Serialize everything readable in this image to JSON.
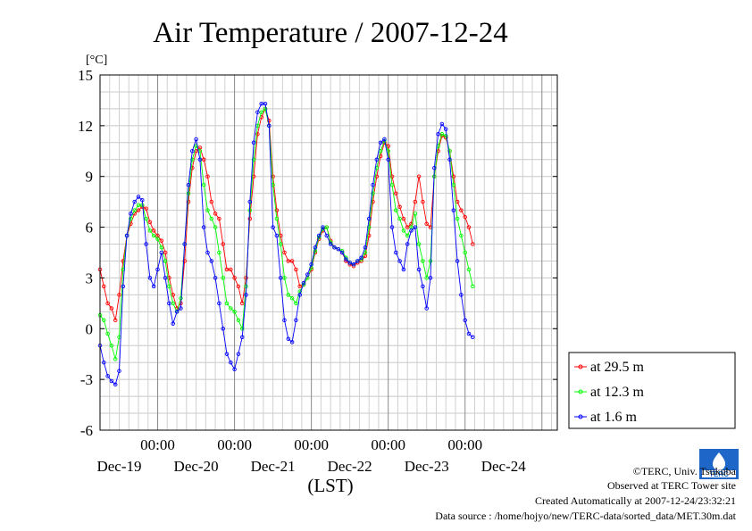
{
  "chart_data": {
    "type": "line",
    "title": "Air Temperature / 2007-12-24",
    "unit": "[°C]",
    "xlabel": "(LST)",
    "ylim": [
      -6,
      15
    ],
    "yticks": [
      15,
      12,
      9,
      6,
      3,
      0,
      -3,
      -6
    ],
    "xlim": [
      -0.75,
      5.2
    ],
    "grid": true,
    "legend_position": "right",
    "x_time_ticks": [
      "00:00",
      "00:00",
      "00:00",
      "00:00",
      "00:00"
    ],
    "x_date_ticks": [
      "Dec-19",
      "Dec-20",
      "Dec-21",
      "Dec-22",
      "Dec-23",
      "Dec-24"
    ],
    "x_date_positions": [
      -0.5,
      0.5,
      1.5,
      2.5,
      3.5,
      4.5
    ],
    "series": [
      {
        "name": "at 29.5 m",
        "color": "#ff0000",
        "points": [
          [
            -0.75,
            3.5
          ],
          [
            -0.7,
            2.5
          ],
          [
            -0.65,
            1.5
          ],
          [
            -0.6,
            1.2
          ],
          [
            -0.55,
            0.5
          ],
          [
            -0.5,
            2.0
          ],
          [
            -0.45,
            4.0
          ],
          [
            -0.4,
            5.5
          ],
          [
            -0.35,
            6.2
          ],
          [
            -0.3,
            6.8
          ],
          [
            -0.25,
            7.0
          ],
          [
            -0.2,
            7.2
          ],
          [
            -0.15,
            7.1
          ],
          [
            -0.1,
            6.3
          ],
          [
            -0.05,
            5.8
          ],
          [
            0.0,
            5.5
          ],
          [
            0.05,
            5.2
          ],
          [
            0.1,
            4.5
          ],
          [
            0.15,
            3.0
          ],
          [
            0.2,
            2.0
          ],
          [
            0.25,
            1.2
          ],
          [
            0.3,
            1.5
          ],
          [
            0.35,
            4.0
          ],
          [
            0.4,
            7.5
          ],
          [
            0.45,
            9.5
          ],
          [
            0.5,
            10.5
          ],
          [
            0.55,
            10.7
          ],
          [
            0.6,
            10.0
          ],
          [
            0.65,
            9.0
          ],
          [
            0.7,
            7.5
          ],
          [
            0.75,
            6.8
          ],
          [
            0.8,
            6.5
          ],
          [
            0.85,
            5.0
          ],
          [
            0.9,
            3.5
          ],
          [
            0.95,
            3.5
          ],
          [
            1.0,
            3.0
          ],
          [
            1.05,
            2.5
          ],
          [
            1.1,
            1.5
          ],
          [
            1.15,
            3.0
          ],
          [
            1.2,
            6.5
          ],
          [
            1.25,
            9.0
          ],
          [
            1.3,
            11.5
          ],
          [
            1.35,
            12.5
          ],
          [
            1.4,
            13.0
          ],
          [
            1.45,
            12.3
          ],
          [
            1.5,
            9.0
          ],
          [
            1.55,
            7.0
          ],
          [
            1.6,
            5.5
          ],
          [
            1.65,
            4.5
          ],
          [
            1.7,
            4.0
          ],
          [
            1.75,
            4.0
          ],
          [
            1.8,
            3.5
          ],
          [
            1.85,
            2.5
          ],
          [
            1.9,
            2.6
          ],
          [
            1.95,
            3.0
          ],
          [
            2.0,
            3.5
          ],
          [
            2.05,
            4.5
          ],
          [
            2.1,
            5.3
          ],
          [
            2.15,
            5.8
          ],
          [
            2.2,
            6.0
          ],
          [
            2.25,
            5.2
          ],
          [
            2.3,
            4.8
          ],
          [
            2.35,
            4.7
          ],
          [
            2.4,
            4.5
          ],
          [
            2.45,
            4.0
          ],
          [
            2.5,
            3.8
          ],
          [
            2.55,
            3.7
          ],
          [
            2.6,
            3.9
          ],
          [
            2.65,
            4.0
          ],
          [
            2.7,
            4.3
          ],
          [
            2.75,
            5.5
          ],
          [
            2.8,
            7.5
          ],
          [
            2.85,
            9.0
          ],
          [
            2.9,
            10.2
          ],
          [
            2.95,
            11.0
          ],
          [
            3.0,
            10.8
          ],
          [
            3.05,
            9.0
          ],
          [
            3.1,
            8.0
          ],
          [
            3.15,
            7.2
          ],
          [
            3.2,
            6.5
          ],
          [
            3.25,
            6.0
          ],
          [
            3.3,
            6.2
          ],
          [
            3.35,
            7.5
          ],
          [
            3.4,
            9.0
          ],
          [
            3.45,
            7.5
          ],
          [
            3.5,
            6.2
          ],
          [
            3.55,
            6.0
          ],
          [
            3.6,
            9.0
          ],
          [
            3.65,
            10.5
          ],
          [
            3.7,
            11.4
          ],
          [
            3.75,
            11.3
          ],
          [
            3.8,
            10.5
          ],
          [
            3.85,
            9.0
          ],
          [
            3.9,
            7.5
          ],
          [
            3.95,
            7.0
          ],
          [
            4.0,
            6.6
          ],
          [
            4.05,
            6.0
          ],
          [
            4.1,
            5.0
          ]
        ]
      },
      {
        "name": "at 12.3 m",
        "color": "#00ff00",
        "points": [
          [
            -0.75,
            0.8
          ],
          [
            -0.7,
            0.5
          ],
          [
            -0.65,
            -0.3
          ],
          [
            -0.6,
            -1.0
          ],
          [
            -0.55,
            -1.8
          ],
          [
            -0.5,
            -0.5
          ],
          [
            -0.45,
            3.5
          ],
          [
            -0.4,
            5.5
          ],
          [
            -0.35,
            6.5
          ],
          [
            -0.3,
            7.0
          ],
          [
            -0.25,
            7.3
          ],
          [
            -0.2,
            7.3
          ],
          [
            -0.15,
            6.5
          ],
          [
            -0.1,
            5.8
          ],
          [
            -0.05,
            5.5
          ],
          [
            0.0,
            5.3
          ],
          [
            0.05,
            4.8
          ],
          [
            0.1,
            4.0
          ],
          [
            0.15,
            2.5
          ],
          [
            0.2,
            1.5
          ],
          [
            0.25,
            1.0
          ],
          [
            0.3,
            1.8
          ],
          [
            0.35,
            5.0
          ],
          [
            0.4,
            8.0
          ],
          [
            0.45,
            10.0
          ],
          [
            0.5,
            10.8
          ],
          [
            0.55,
            10.5
          ],
          [
            0.6,
            8.5
          ],
          [
            0.65,
            7.0
          ],
          [
            0.7,
            6.5
          ],
          [
            0.75,
            6.0
          ],
          [
            0.8,
            4.5
          ],
          [
            0.85,
            3.0
          ],
          [
            0.9,
            1.5
          ],
          [
            0.95,
            1.2
          ],
          [
            1.0,
            1.0
          ],
          [
            1.05,
            0.5
          ],
          [
            1.1,
            0.0
          ],
          [
            1.15,
            2.5
          ],
          [
            1.2,
            7.0
          ],
          [
            1.25,
            10.0
          ],
          [
            1.3,
            12.0
          ],
          [
            1.35,
            12.8
          ],
          [
            1.4,
            13.0
          ],
          [
            1.45,
            12.0
          ],
          [
            1.5,
            8.5
          ],
          [
            1.55,
            6.5
          ],
          [
            1.6,
            5.0
          ],
          [
            1.65,
            3.0
          ],
          [
            1.7,
            2.0
          ],
          [
            1.75,
            1.8
          ],
          [
            1.8,
            1.5
          ],
          [
            1.85,
            2.2
          ],
          [
            1.9,
            2.6
          ],
          [
            1.95,
            3.0
          ],
          [
            2.0,
            3.6
          ],
          [
            2.05,
            4.6
          ],
          [
            2.1,
            5.4
          ],
          [
            2.15,
            5.9
          ],
          [
            2.2,
            6.0
          ],
          [
            2.25,
            5.1
          ],
          [
            2.3,
            4.8
          ],
          [
            2.35,
            4.7
          ],
          [
            2.4,
            4.6
          ],
          [
            2.45,
            4.2
          ],
          [
            2.5,
            3.9
          ],
          [
            2.55,
            3.8
          ],
          [
            2.6,
            4.0
          ],
          [
            2.65,
            4.1
          ],
          [
            2.7,
            4.5
          ],
          [
            2.75,
            6.0
          ],
          [
            2.8,
            8.0
          ],
          [
            2.85,
            9.5
          ],
          [
            2.9,
            10.5
          ],
          [
            2.95,
            11.1
          ],
          [
            3.0,
            10.5
          ],
          [
            3.05,
            8.5
          ],
          [
            3.1,
            7.0
          ],
          [
            3.15,
            6.5
          ],
          [
            3.2,
            5.8
          ],
          [
            3.25,
            5.5
          ],
          [
            3.3,
            6.0
          ],
          [
            3.35,
            6.8
          ],
          [
            3.4,
            5.0
          ],
          [
            3.45,
            4.0
          ],
          [
            3.5,
            3.0
          ],
          [
            3.55,
            4.0
          ],
          [
            3.6,
            9.0
          ],
          [
            3.65,
            10.8
          ],
          [
            3.7,
            11.5
          ],
          [
            3.75,
            11.4
          ],
          [
            3.8,
            10.5
          ],
          [
            3.85,
            8.5
          ],
          [
            3.9,
            6.5
          ],
          [
            3.95,
            5.5
          ],
          [
            4.0,
            4.5
          ],
          [
            4.05,
            3.5
          ],
          [
            4.1,
            2.5
          ]
        ]
      },
      {
        "name": "at 1.6 m",
        "color": "#0000ff",
        "points": [
          [
            -0.75,
            -1.0
          ],
          [
            -0.7,
            -2.0
          ],
          [
            -0.65,
            -2.8
          ],
          [
            -0.6,
            -3.1
          ],
          [
            -0.55,
            -3.3
          ],
          [
            -0.5,
            -2.5
          ],
          [
            -0.45,
            2.5
          ],
          [
            -0.4,
            5.5
          ],
          [
            -0.35,
            6.8
          ],
          [
            -0.3,
            7.5
          ],
          [
            -0.25,
            7.8
          ],
          [
            -0.2,
            7.6
          ],
          [
            -0.15,
            5.0
          ],
          [
            -0.1,
            3.0
          ],
          [
            -0.05,
            2.5
          ],
          [
            0.0,
            3.5
          ],
          [
            0.05,
            4.5
          ],
          [
            0.1,
            3.0
          ],
          [
            0.15,
            1.5
          ],
          [
            0.2,
            0.3
          ],
          [
            0.25,
            1.0
          ],
          [
            0.3,
            1.2
          ],
          [
            0.35,
            5.0
          ],
          [
            0.4,
            8.5
          ],
          [
            0.45,
            10.5
          ],
          [
            0.5,
            11.2
          ],
          [
            0.55,
            10.0
          ],
          [
            0.6,
            6.0
          ],
          [
            0.65,
            4.5
          ],
          [
            0.7,
            4.0
          ],
          [
            0.75,
            3.0
          ],
          [
            0.8,
            1.5
          ],
          [
            0.85,
            0.0
          ],
          [
            0.9,
            -1.5
          ],
          [
            0.95,
            -2.0
          ],
          [
            1.0,
            -2.4
          ],
          [
            1.05,
            -1.5
          ],
          [
            1.1,
            -0.5
          ],
          [
            1.15,
            2.0
          ],
          [
            1.2,
            7.5
          ],
          [
            1.25,
            11.0
          ],
          [
            1.3,
            12.8
          ],
          [
            1.35,
            13.3
          ],
          [
            1.4,
            13.3
          ],
          [
            1.45,
            12.0
          ],
          [
            1.5,
            6.0
          ],
          [
            1.55,
            5.5
          ],
          [
            1.6,
            3.0
          ],
          [
            1.65,
            0.5
          ],
          [
            1.7,
            -0.6
          ],
          [
            1.75,
            -0.8
          ],
          [
            1.8,
            0.5
          ],
          [
            1.85,
            2.0
          ],
          [
            1.9,
            2.7
          ],
          [
            1.95,
            3.2
          ],
          [
            2.0,
            3.8
          ],
          [
            2.05,
            4.8
          ],
          [
            2.1,
            5.5
          ],
          [
            2.15,
            6.0
          ],
          [
            2.2,
            5.5
          ],
          [
            2.25,
            5.0
          ],
          [
            2.3,
            4.8
          ],
          [
            2.35,
            4.7
          ],
          [
            2.4,
            4.5
          ],
          [
            2.45,
            4.1
          ],
          [
            2.5,
            3.9
          ],
          [
            2.55,
            3.8
          ],
          [
            2.6,
            4.0
          ],
          [
            2.65,
            4.2
          ],
          [
            2.7,
            4.8
          ],
          [
            2.75,
            6.5
          ],
          [
            2.8,
            8.5
          ],
          [
            2.85,
            10.0
          ],
          [
            2.9,
            11.0
          ],
          [
            2.95,
            11.2
          ],
          [
            3.0,
            10.0
          ],
          [
            3.05,
            6.0
          ],
          [
            3.1,
            4.5
          ],
          [
            3.15,
            4.0
          ],
          [
            3.2,
            3.5
          ],
          [
            3.25,
            5.0
          ],
          [
            3.3,
            5.8
          ],
          [
            3.35,
            6.0
          ],
          [
            3.4,
            3.5
          ],
          [
            3.45,
            2.5
          ],
          [
            3.5,
            1.2
          ],
          [
            3.55,
            3.0
          ],
          [
            3.6,
            9.5
          ],
          [
            3.65,
            11.5
          ],
          [
            3.7,
            12.1
          ],
          [
            3.75,
            11.8
          ],
          [
            3.8,
            10.0
          ],
          [
            3.85,
            7.0
          ],
          [
            3.9,
            4.0
          ],
          [
            3.95,
            2.0
          ],
          [
            4.0,
            0.5
          ],
          [
            4.05,
            -0.3
          ],
          [
            4.1,
            -0.5
          ]
        ]
      }
    ]
  },
  "footer": {
    "copyright": "©TERC, Univ. Tsukuba",
    "observed": "Observed at TERC Tower site",
    "created": "Created Automatically at 2007-12-24/23:32:21",
    "source": "Data source : /home/hojyo/new/TERC-data/sorted_data/MET.30m.dat"
  },
  "logo": {
    "text": "TERC"
  }
}
